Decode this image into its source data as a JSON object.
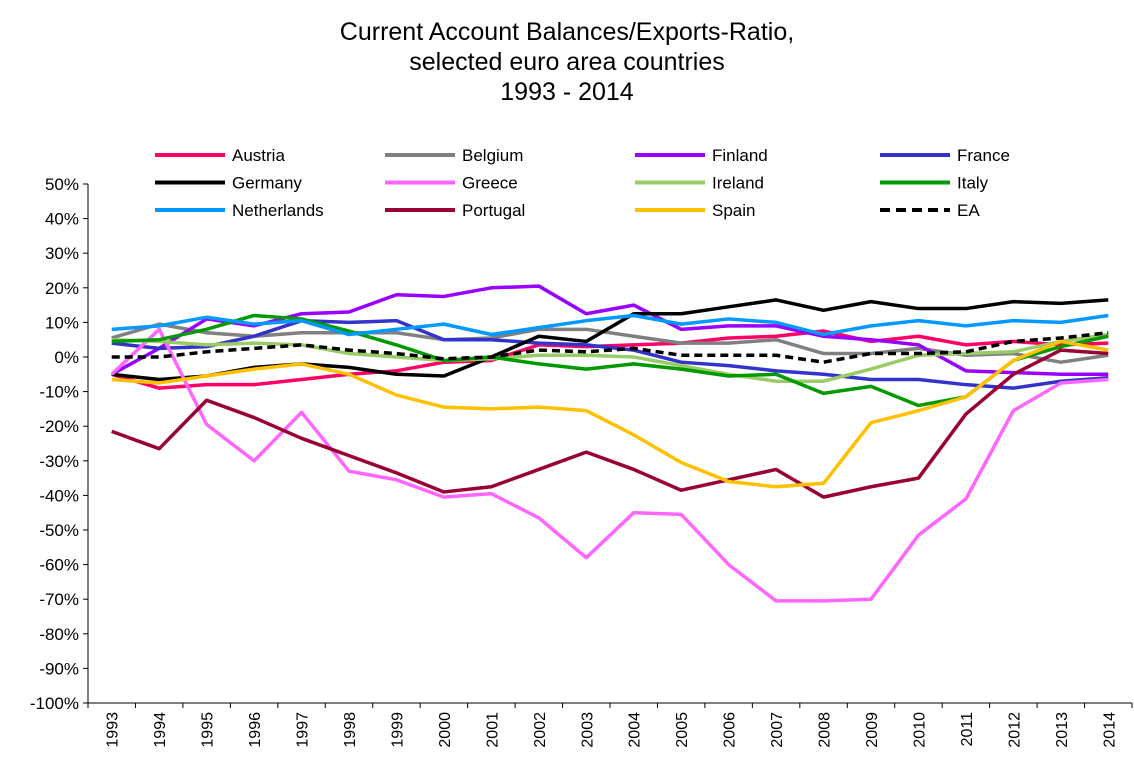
{
  "chart_data": {
    "type": "line",
    "title": [
      "Current Account Balances/Exports-Ratio,",
      "selected euro area countries",
      "1993 - 2014"
    ],
    "categories": [
      "1993",
      "1994",
      "1995",
      "1996",
      "1997",
      "1998",
      "1999",
      "2000",
      "2001",
      "2002",
      "2003",
      "2004",
      "2005",
      "2006",
      "2007",
      "2008",
      "2009",
      "2010",
      "2011",
      "2012",
      "2013",
      "2014"
    ],
    "ylim": [
      -100,
      50
    ],
    "yticks": [
      {
        "value": -100,
        "label": "-100%"
      },
      {
        "value": -90,
        "label": "-90%"
      },
      {
        "value": -80,
        "label": "-80%"
      },
      {
        "value": -70,
        "label": "-70%"
      },
      {
        "value": -60,
        "label": "-60%"
      },
      {
        "value": -50,
        "label": "-50%"
      },
      {
        "value": -40,
        "label": "-40%"
      },
      {
        "value": -30,
        "label": "-30%"
      },
      {
        "value": -20,
        "label": "-20%"
      },
      {
        "value": -10,
        "label": "-10%"
      },
      {
        "value": 0,
        "label": "0%"
      },
      {
        "value": 10,
        "label": "10%"
      },
      {
        "value": 20,
        "label": "20%"
      },
      {
        "value": 30,
        "label": "30%"
      },
      {
        "value": 40,
        "label": "40%"
      },
      {
        "value": 50,
        "label": "50%"
      }
    ],
    "grid": false,
    "legend": "top",
    "series": [
      {
        "name": "Austria",
        "color": "#ff0066",
        "values": [
          -5,
          -9,
          -8,
          -8,
          -6.5,
          -5,
          -4,
          -1.5,
          -1,
          3.5,
          3,
          3.5,
          4,
          5.5,
          6,
          7.5,
          4.5,
          6,
          3.5,
          4.5,
          3.5,
          4
        ]
      },
      {
        "name": "Belgium",
        "color": "#808080",
        "values": [
          5.5,
          9.5,
          7,
          6,
          7,
          7,
          7,
          5,
          5.5,
          8,
          8,
          6,
          4,
          4,
          5,
          1,
          1,
          2.5,
          0.5,
          1,
          -1.5,
          0.5
        ]
      },
      {
        "name": "Finland",
        "color": "#9900ff",
        "values": [
          -5,
          2.5,
          11,
          9,
          12.5,
          13,
          18,
          17.5,
          20,
          20.5,
          12.5,
          15,
          8,
          9,
          9,
          6,
          5,
          3.5,
          -4,
          -4.5,
          -5,
          -5
        ]
      },
      {
        "name": "France",
        "color": "#3333cc",
        "values": [
          4,
          2.5,
          3,
          6,
          10.5,
          10,
          10.5,
          5,
          5,
          4,
          3.5,
          2,
          -1.5,
          -2.5,
          -4,
          -5,
          -6.5,
          -6.5,
          -8,
          -9,
          -7,
          -6
        ]
      },
      {
        "name": "Germany",
        "color": "#000000",
        "values": [
          -5,
          -6.5,
          -5.5,
          -3,
          -2,
          -3,
          -5,
          -5.5,
          0,
          6,
          4.5,
          12.5,
          12.5,
          14.5,
          16.5,
          13.5,
          16,
          14,
          14,
          16,
          15.5,
          16.5
        ]
      },
      {
        "name": "Greece",
        "color": "#ff66ff",
        "values": [
          -5,
          8,
          -19.5,
          -30,
          -16,
          -33,
          -35.5,
          -40.5,
          -39.5,
          -46.5,
          -58,
          -45,
          -45.5,
          -60,
          -70.5,
          -70.5,
          -70,
          -51.5,
          -41,
          -15.5,
          -7.5,
          -6.5
        ]
      },
      {
        "name": "Ireland",
        "color": "#99cc66",
        "values": [
          5,
          4.5,
          3.5,
          4,
          3.5,
          1,
          0,
          -1,
          -0.5,
          0.5,
          0.5,
          0,
          -2.5,
          -5,
          -7,
          -7,
          -3.5,
          0.5,
          1,
          1.5,
          4.5,
          6.5
        ]
      },
      {
        "name": "Italy",
        "color": "#009900",
        "values": [
          4.5,
          5,
          8,
          12,
          11,
          7.5,
          3.5,
          -1,
          0,
          -2,
          -3.5,
          -2,
          -3.5,
          -5.5,
          -5,
          -10.5,
          -8.5,
          -14,
          -11.5,
          -1,
          3,
          6
        ]
      },
      {
        "name": "Netherlands",
        "color": "#0099ff",
        "values": [
          8,
          9,
          11.5,
          9.5,
          10.5,
          6.5,
          8,
          9.5,
          6.5,
          8.5,
          10.5,
          12,
          9.5,
          11,
          10,
          6.5,
          9,
          10.5,
          9,
          10.5,
          10,
          12
        ]
      },
      {
        "name": "Portugal",
        "color": "#990033",
        "values": [
          -21.5,
          -26.5,
          -12.5,
          -17.5,
          -23.5,
          -28.5,
          -33.5,
          -39,
          -37.5,
          -32.5,
          -27.5,
          -32.5,
          -38.5,
          -35.5,
          -32.5,
          -40.5,
          -37.5,
          -35,
          -16.5,
          -5,
          2,
          1
        ]
      },
      {
        "name": "Spain",
        "color": "#ffc000",
        "values": [
          -6.5,
          -7.5,
          -5.5,
          -3.5,
          -2,
          -5,
          -11,
          -14.5,
          -15,
          -14.5,
          -15.5,
          -22.5,
          -30.5,
          -36,
          -37.5,
          -36.5,
          -19,
          -15.5,
          -11.5,
          -1,
          4.5,
          2
        ]
      },
      {
        "name": "EA",
        "color": "#000000",
        "dashed": true,
        "values": [
          0,
          0,
          1.5,
          2.5,
          3.5,
          2,
          1,
          -0.5,
          0,
          2,
          1.5,
          2.5,
          0.5,
          0.5,
          0.5,
          -1.5,
          1,
          1,
          1.5,
          4.5,
          5.5,
          7
        ]
      }
    ]
  }
}
